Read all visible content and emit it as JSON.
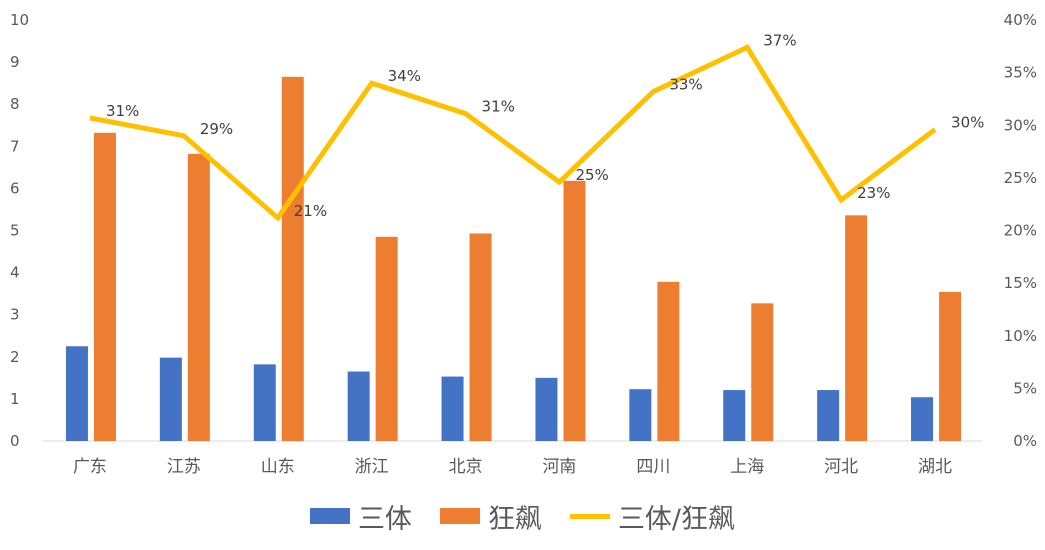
{
  "chart_data": {
    "type": "bar",
    "categories": [
      "广东",
      "江苏",
      "山东",
      "浙江",
      "北京",
      "河南",
      "四川",
      "上海",
      "河北",
      "湖北"
    ],
    "series": [
      {
        "name": "三体",
        "type": "bar",
        "axis": "left",
        "color": "#4472C4",
        "values": [
          2.25,
          1.98,
          1.82,
          1.65,
          1.53,
          1.5,
          1.23,
          1.21,
          1.21,
          1.04
        ]
      },
      {
        "name": "狂飙",
        "type": "bar",
        "axis": "left",
        "color": "#ED7D31",
        "values": [
          7.32,
          6.82,
          8.65,
          4.85,
          4.93,
          6.18,
          3.78,
          3.27,
          5.36,
          3.54
        ]
      },
      {
        "name": "三体/狂飙",
        "type": "line",
        "axis": "right",
        "color": "#FFC000",
        "values": [
          0.307,
          0.29,
          0.212,
          0.34,
          0.311,
          0.246,
          0.332,
          0.374,
          0.229,
          0.296
        ],
        "data_labels": [
          "31%",
          "29%",
          "21%",
          "34%",
          "31%",
          "25%",
          "33%",
          "37%",
          "23%",
          "30%"
        ]
      }
    ],
    "y_left": {
      "min": 0,
      "max": 10,
      "ticks": [
        "0",
        "1",
        "2",
        "3",
        "4",
        "5",
        "6",
        "7",
        "8",
        "9",
        "10"
      ]
    },
    "y_right": {
      "min": 0,
      "max": 0.4,
      "ticks": [
        "0%",
        "5%",
        "10%",
        "15%",
        "20%",
        "25%",
        "30%",
        "35%",
        "40%"
      ]
    },
    "grid": false,
    "legend": "bottom"
  },
  "legend": {
    "item0": "三体",
    "item1": "狂飙",
    "item2": "三体/狂飙"
  }
}
